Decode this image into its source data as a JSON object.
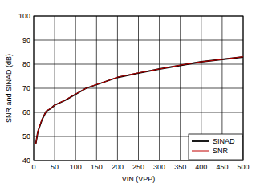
{
  "chart_data": {
    "type": "line",
    "x_label": "VIN (VPP)",
    "y_label": "SNR and SINAD (dB)",
    "x": [
      5,
      10,
      20,
      30,
      40,
      50,
      75,
      100,
      125,
      150,
      175,
      200,
      250,
      300,
      350,
      400,
      450,
      500
    ],
    "series": [
      {
        "name": "SINAD",
        "color": "#000000",
        "values": [
          47,
          52,
          57,
          60.5,
          61.5,
          63,
          65,
          67.5,
          70,
          71.5,
          73,
          74.5,
          76.3,
          78,
          79.5,
          81,
          82,
          83
        ]
      },
      {
        "name": "SNR",
        "color": "#c00000",
        "values": [
          47,
          52.2,
          57.2,
          60.6,
          61.6,
          63,
          65.1,
          67.6,
          70,
          71.6,
          73,
          74.6,
          76.4,
          78,
          79.6,
          81,
          82,
          83.1
        ]
      }
    ],
    "xlim": [
      0,
      500
    ],
    "xticks": [
      0,
      50,
      100,
      150,
      200,
      250,
      300,
      350,
      400,
      450,
      500
    ],
    "ylim": [
      40,
      100
    ],
    "yticks": [
      40,
      50,
      60,
      70,
      80,
      90,
      100
    ],
    "grid": true,
    "legend": "lower right"
  }
}
